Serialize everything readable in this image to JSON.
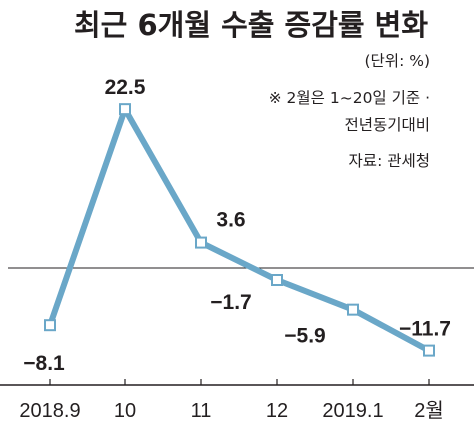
{
  "chart_data": {
    "type": "line",
    "title": "최근 6개월 수출 증감률 변화",
    "unit_note": "(단위: %)",
    "footnote_lines": [
      "※ 2월은 1~20일 기준 ·",
      "전년동기대비"
    ],
    "source": "자료: 관세청",
    "categories": [
      "2018.9",
      "10",
      "11",
      "12",
      "2019.1",
      "2월"
    ],
    "values": [
      -8.1,
      22.5,
      3.6,
      -1.7,
      -5.9,
      -11.7
    ],
    "data_labels": [
      "−8.1",
      "22.5",
      "3.6",
      "−1.7",
      "−5.9",
      "−11.7"
    ],
    "baseline": 0,
    "line_color": "#6aa7c8",
    "marker_fill": "#ffffff"
  }
}
